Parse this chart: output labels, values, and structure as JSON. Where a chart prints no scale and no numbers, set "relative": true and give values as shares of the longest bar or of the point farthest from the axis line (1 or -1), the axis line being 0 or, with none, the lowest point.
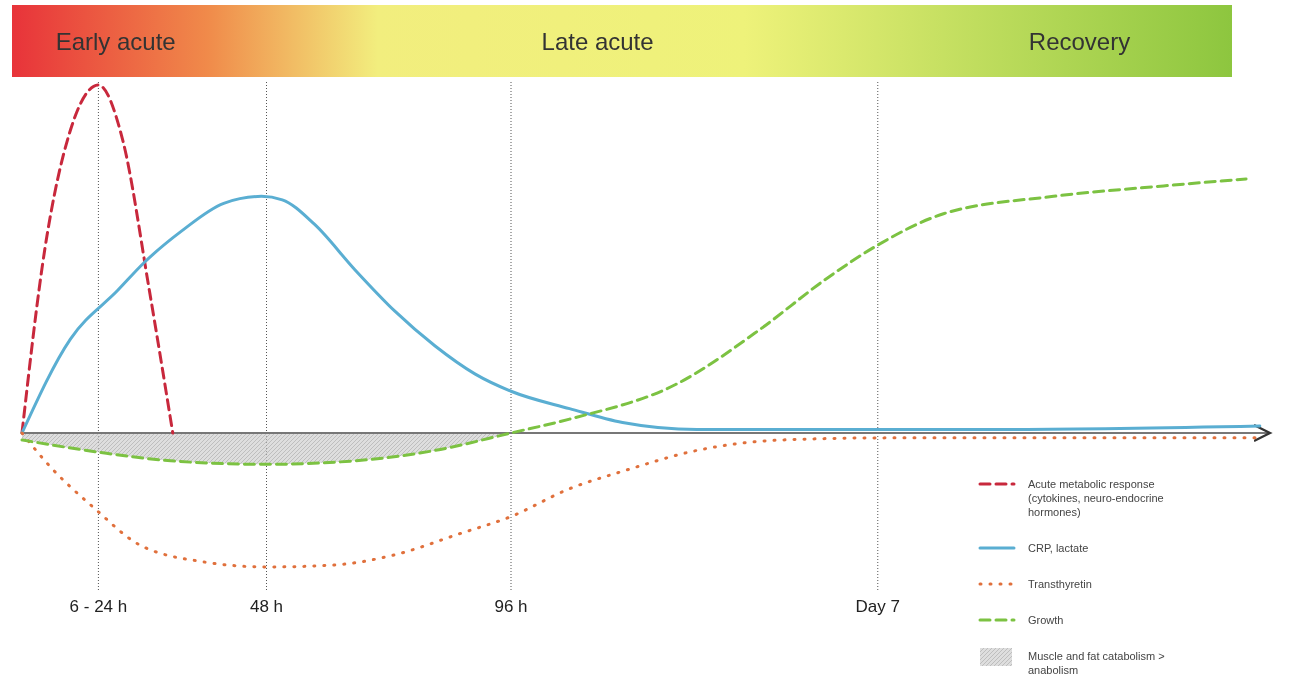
{
  "chart_data": {
    "type": "line",
    "relative": true,
    "xlim": [
      0,
      245
    ],
    "xticks": [
      {
        "value": 15,
        "label": "6 - 24 h"
      },
      {
        "value": 48,
        "label": "48 h"
      },
      {
        "value": 96,
        "label": "96 h"
      },
      {
        "value": 168,
        "label": "Day 7"
      }
    ],
    "grid": "x",
    "legend": "bottom right",
    "annotations": [
      "Early acute",
      "Late acute",
      "Recovery"
    ],
    "series": [
      {
        "name": "Acute metabolic response (cytokines, neuro-endocrine hormones)",
        "line_style": "dashed",
        "color": "#c8283c",
        "x": [
          0,
          4.5,
          9.5,
          15,
          19.8,
          25,
          29.6
        ],
        "values": [
          0,
          0.53,
          0.87,
          1,
          0.84,
          0.41,
          0
        ]
      },
      {
        "name": "CRP, lactate",
        "line_style": "solid",
        "color": "#5aaed2",
        "x": [
          0,
          9.5,
          18.8,
          24,
          31.3,
          39.6,
          47,
          51.1,
          57.4,
          65.3,
          73.2,
          81.1,
          88.9,
          96,
          107.5,
          117.9,
          132.5,
          149.2,
          191.7,
          243
        ],
        "values": [
          0,
          0.27,
          0.41,
          0.49,
          0.58,
          0.66,
          0.68,
          0.67,
          0.6,
          0.47,
          0.35,
          0.25,
          0.17,
          0.12,
          0.07,
          0.03,
          0.01,
          0.01,
          0.01,
          0.02
        ]
      },
      {
        "name": "Transthyretin",
        "line_style": "dotted",
        "color": "#e0703c",
        "x": [
          0,
          4.5,
          14.5,
          22.9,
          35.5,
          48,
          60.6,
          73.2,
          85.8,
          96,
          107.5,
          117.9,
          132.5,
          149.2,
          170.2,
          243
        ],
        "values": [
          0,
          -0.08,
          -0.22,
          -0.32,
          -0.37,
          -0.385,
          -0.38,
          -0.35,
          -0.29,
          -0.24,
          -0.16,
          -0.11,
          -0.05,
          -0.02,
          -0.014,
          -0.014
        ]
      },
      {
        "name": "Growth",
        "line_style": "dashed",
        "color": "#7cc242",
        "x": [
          0,
          15,
          29.2,
          48,
          65.3,
          81.1,
          96,
          107.5,
          128.4,
          145.1,
          157.6,
          168,
          180.9,
          202.5,
          224.1,
          240.3
        ],
        "values": [
          -0.02,
          -0.055,
          -0.08,
          -0.09,
          -0.08,
          -0.05,
          0,
          0.04,
          0.14,
          0.3,
          0.44,
          0.54,
          0.63,
          0.68,
          0.71,
          0.73
        ]
      },
      {
        "name": "Muscle and fat catabolism > anabolism",
        "type": "area",
        "color": "#c8c8c8",
        "x": [
          0,
          15,
          29.2,
          48,
          65.3,
          81.1,
          96
        ],
        "values": [
          -0.02,
          -0.055,
          -0.08,
          -0.09,
          -0.08,
          -0.05,
          0
        ]
      }
    ]
  }
}
